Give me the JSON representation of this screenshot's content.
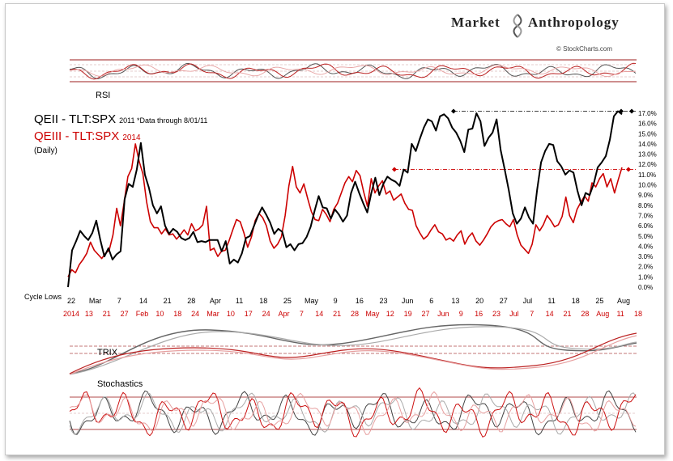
{
  "brand": {
    "left": "Market",
    "right": "Anthropology",
    "credit": "© StockCharts.com"
  },
  "chart_data": {
    "type": "line",
    "title_lines": [
      {
        "big": "QEII  - TLT:SPX",
        "small": "2011 *Data through 8/01/11",
        "color": "#000000"
      },
      {
        "big": "QEIII - TLT:SPX",
        "small": "2014",
        "color": "#cc0000"
      }
    ],
    "subtitle": "(Daily)",
    "cycle_label": "Cycle Lows",
    "ylim": [
      0,
      17.5
    ],
    "y_ticks": [
      "0.0%",
      "1.0%",
      "2.0%",
      "3.0%",
      "4.0%",
      "5.0%",
      "6.0%",
      "7.0%",
      "8.0%",
      "9.0%",
      "10.0%",
      "11.0%",
      "12.0%",
      "13.0%",
      "14.0%",
      "15.0%",
      "16.0%",
      "17.0%"
    ],
    "x_ticks_black": [
      "22",
      "Mar",
      "7",
      "14",
      "21",
      "28",
      "Apr",
      "11",
      "18",
      "25",
      "May",
      "9",
      "16",
      "23",
      "Jun",
      "6",
      "13",
      "20",
      "27",
      "Jul",
      "11",
      "18",
      "25",
      "Aug"
    ],
    "x_ticks_red": [
      "2014",
      "13",
      "21",
      "27",
      "Feb",
      "10",
      "18",
      "24",
      "Mar",
      "10",
      "17",
      "24",
      "Apr",
      "7",
      "14",
      "21",
      "28",
      "May",
      "12",
      "19",
      "27",
      "Jun",
      "9",
      "16",
      "23",
      "Jul",
      "7",
      "14",
      "21",
      "28",
      "Aug",
      "11",
      "18"
    ],
    "series": [
      {
        "name": "QEII - TLT:SPX 2011",
        "color": "#000000",
        "values": [
          0,
          3.6,
          4.5,
          5.5,
          5,
          4.6,
          5.3,
          6.5,
          4.6,
          3,
          3.8,
          2.7,
          3.2,
          3.5,
          8.6,
          10.1,
          9.8,
          11.5,
          14.1,
          11,
          9.7,
          8,
          7.2,
          7.9,
          6,
          5.2,
          5.7,
          5.4,
          4.8,
          4.6,
          4.8,
          5.4,
          4.4,
          4.5,
          4.4,
          4.6,
          4.6,
          4.6,
          3.5,
          4.5,
          2.3,
          2.7,
          2.4,
          3.3,
          4.8,
          5,
          6,
          7,
          7.8,
          7.1,
          6.3,
          5.2,
          5.7,
          5.4,
          3.9,
          4.2,
          3.6,
          4.2,
          4.3,
          4.9,
          5.9,
          7.5,
          8.9,
          7.8,
          7.7,
          6.7,
          7.6,
          7.1,
          6.4,
          7,
          9.2,
          10.3,
          9.2,
          8.2,
          7.3,
          9.2,
          10.7,
          9,
          10.1,
          10.8,
          10.5,
          10.3,
          9.9,
          11.5,
          11.2,
          14,
          13.3,
          14.5,
          15.6,
          16.4,
          16.2,
          15.3,
          16.7,
          16.9,
          16.5,
          15.6,
          15.1,
          14.3,
          13.2,
          15.4,
          15.5,
          17,
          16.2,
          13.8,
          14.6,
          15.1,
          16.4,
          13.4,
          11.5,
          9.5,
          7.2,
          6.2,
          6.7,
          7.8,
          6.8,
          6.2,
          9.5,
          12.2,
          13.3,
          14,
          13.9,
          12.3,
          11.8,
          11,
          11.4,
          11.2,
          9.4,
          8,
          9.2,
          9,
          10.1,
          11.7,
          12.2,
          12.8,
          14.4,
          16.7,
          17.2,
          16.9
        ]
      },
      {
        "name": "QEIII - TLT:SPX 2014",
        "color": "#cc0000",
        "values": [
          1,
          1.7,
          1.4,
          2.2,
          2.7,
          3.3,
          4.4,
          3.6,
          3.2,
          2.8,
          3.3,
          3.6,
          5.1,
          7.7,
          6,
          8.3,
          10.8,
          11.6,
          14,
          12.3,
          11.1,
          8.3,
          6.4,
          5.8,
          5.8,
          5.2,
          5.7,
          5.1,
          5.2,
          4.7,
          5.1,
          5.6,
          5.1,
          6.2,
          5.5,
          5.7,
          6.1,
          7.9,
          3.6,
          3.8,
          3,
          3.5,
          3.6,
          4.5,
          5.6,
          6.6,
          6.4,
          5.3,
          3.9,
          4.9,
          6.5,
          7.2,
          6.8,
          6,
          4.5,
          3.8,
          4.2,
          4.9,
          7,
          9.9,
          11.8,
          9.8,
          9.2,
          10.1,
          8.7,
          7.4,
          6.6,
          6.5,
          7.6,
          7.1,
          6.4,
          7.6,
          8.2,
          9.2,
          10.2,
          10.8,
          10.3,
          11.4,
          10.9,
          9.3,
          7.9,
          10.6,
          9.2,
          9.9,
          10.4,
          9.1,
          9.4,
          8.5,
          8.8,
          9.1,
          8.2,
          7.6,
          7.5,
          6,
          5.3,
          4.7,
          5,
          5.6,
          6.1,
          5.4,
          5.2,
          4.6,
          4.8,
          4.5,
          5.1,
          5.5,
          4.2,
          4.9,
          5.3,
          4.5,
          4.1,
          4.6,
          5.2,
          5.9,
          6.3,
          6.5,
          6.6,
          6.2,
          5.9,
          6.6,
          5.1,
          4.1,
          3.7,
          3.3,
          4.2,
          6.1,
          5.5,
          6.1,
          7,
          6.5,
          5.9,
          6.1,
          6.9,
          8.8,
          7,
          6.3,
          7.6,
          8.3,
          8.9,
          8.4,
          10.2,
          9.8,
          10.6,
          11.1,
          9.8,
          10.6,
          9.2,
          10.5,
          11.7
        ]
      }
    ],
    "black_high": 17.2,
    "red_high": 11.5,
    "indicators": {
      "rsi": "RSI",
      "trix": "TRIX",
      "stoch": "Stochastics"
    }
  }
}
